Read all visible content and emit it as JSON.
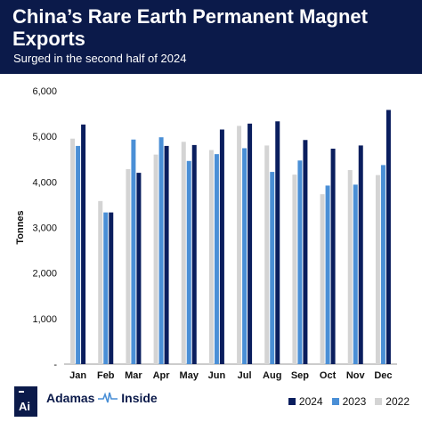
{
  "header": {
    "title": "China’s Rare Earth Permanent Magnet Exports",
    "subtitle": "Surged in the second half of 2024"
  },
  "brand": {
    "logo_text": "Ai",
    "name_part1": "Adamas",
    "name_part2": "Inside"
  },
  "colors": {
    "header_bg": "#0b1a4a",
    "s2024": "#0a1e5e",
    "s2023": "#4a8fd6",
    "s2022": "#d4d4d4"
  },
  "chart_data": {
    "type": "bar",
    "ylabel": "Tonnes",
    "ylim": [
      0,
      6000
    ],
    "yticks": [
      {
        "value": 0,
        "label": "-"
      },
      {
        "value": 1000,
        "label": "1,000"
      },
      {
        "value": 2000,
        "label": "2,000"
      },
      {
        "value": 3000,
        "label": "3,000"
      },
      {
        "value": 4000,
        "label": "4,000"
      },
      {
        "value": 5000,
        "label": "5,000"
      },
      {
        "value": 6000,
        "label": "6,000"
      }
    ],
    "categories": [
      "Jan",
      "Feb",
      "Mar",
      "Apr",
      "May",
      "Jun",
      "Jul",
      "Aug",
      "Sep",
      "Oct",
      "Nov",
      "Dec"
    ],
    "series": [
      {
        "name": "2022",
        "color": "#d4d4d4",
        "values": [
          4950,
          3580,
          4280,
          4600,
          4880,
          4700,
          5230,
          4800,
          4160,
          3730,
          4260,
          4150
        ]
      },
      {
        "name": "2023",
        "color": "#4a8fd6",
        "values": [
          4790,
          3330,
          4930,
          4980,
          4460,
          4610,
          4740,
          4220,
          4470,
          3920,
          3940,
          4370
        ]
      },
      {
        "name": "2024",
        "color": "#0a1e5e",
        "values": [
          5260,
          3330,
          4200,
          4790,
          4810,
          5150,
          5280,
          5330,
          4920,
          4730,
          4800,
          5580
        ]
      }
    ],
    "legend_order": [
      "2024",
      "2023",
      "2022"
    ],
    "legend_position": "bottom-right",
    "grid": false
  }
}
